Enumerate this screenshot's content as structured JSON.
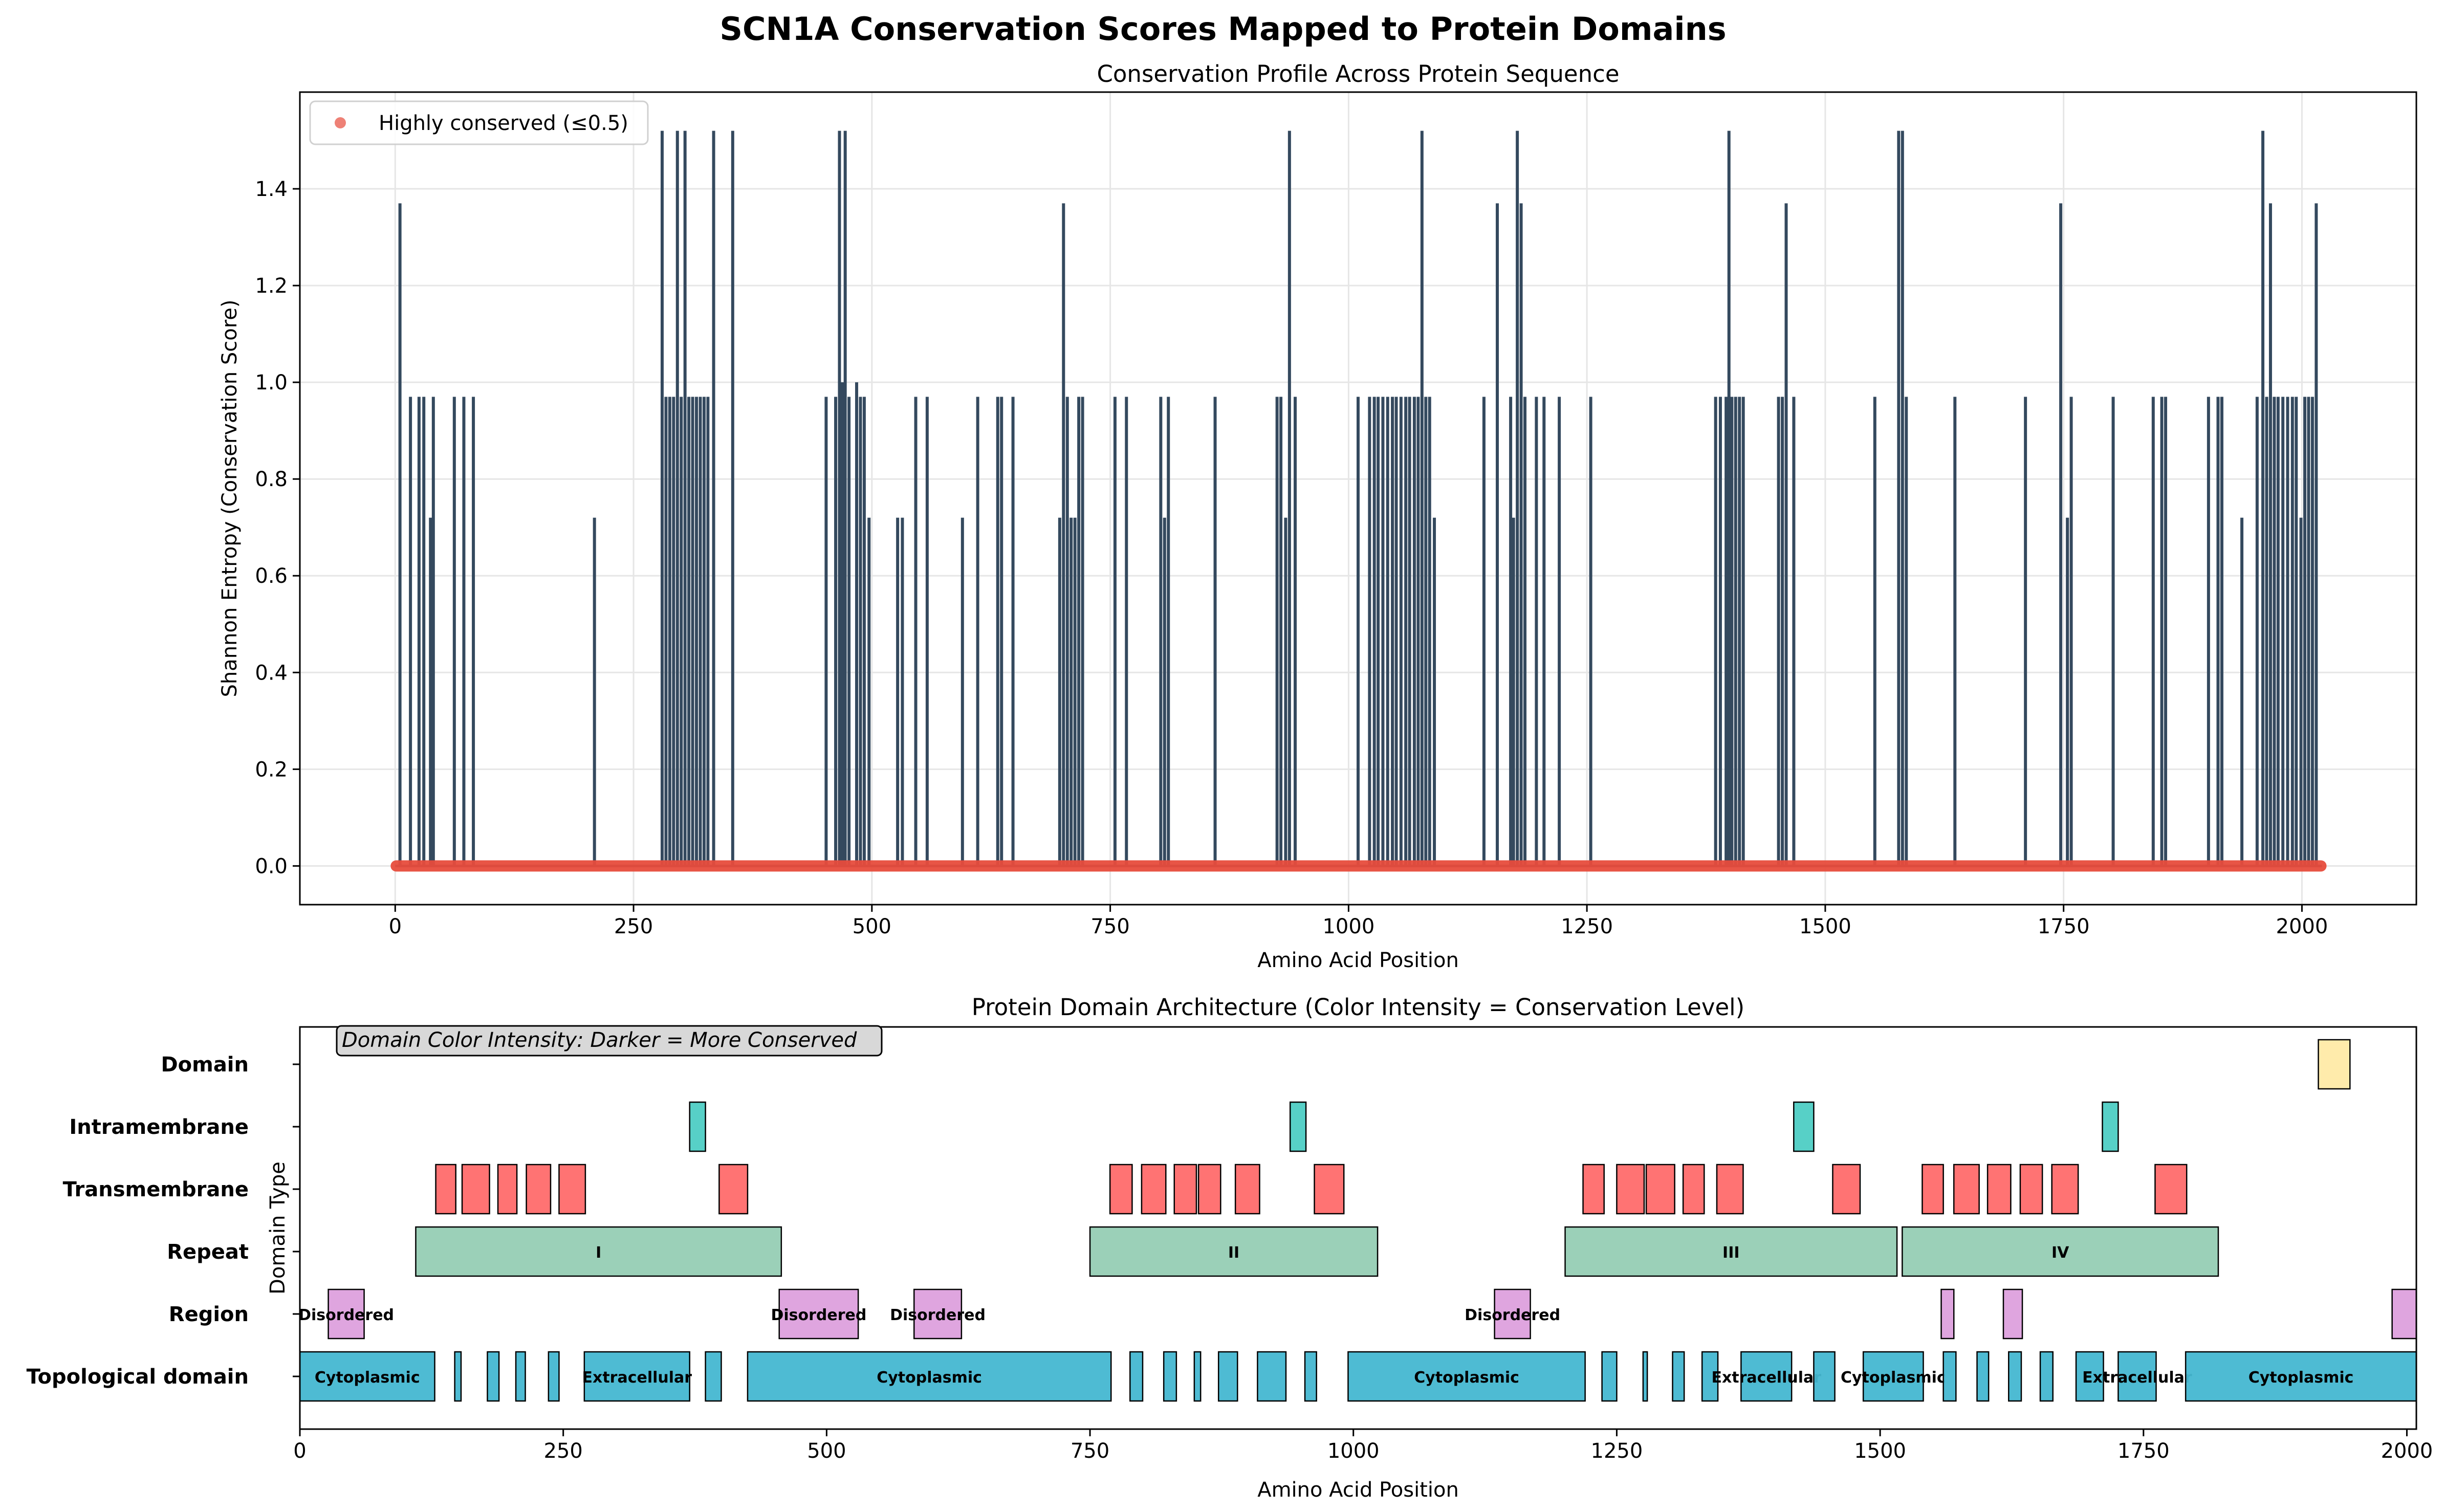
{
  "figure": {
    "suptitle": "SCN1A Conservation Scores Mapped to Protein Domains"
  },
  "chart_data": [
    {
      "type": "line",
      "title": "Conservation Profile Across Protein Sequence",
      "xlabel": "Amino Acid Position",
      "ylabel": "Shannon Entropy (Conservation Score)",
      "xlim": [
        -100,
        2120
      ],
      "ylim": [
        -0.08,
        1.6
      ],
      "xticks": [
        0,
        250,
        500,
        750,
        1000,
        1250,
        1500,
        1750,
        2000
      ],
      "yticks": [
        0.0,
        0.2,
        0.4,
        0.6,
        0.8,
        1.0,
        1.2,
        1.4
      ],
      "ytick_labels": [
        "0.0",
        "0.2",
        "0.4",
        "0.6",
        "0.8",
        "1.0",
        "1.2",
        "1.4"
      ],
      "grid": true,
      "legend_position": "top-left",
      "baseline_range": [
        0,
        2021
      ],
      "series": [
        {
          "name": "Shannon entropy",
          "color": "#34495e",
          "spikes": [
            [
              5,
              1.37
            ],
            [
              16,
              0.97
            ],
            [
              25,
              0.97
            ],
            [
              30,
              0.97
            ],
            [
              37,
              0.72
            ],
            [
              40,
              0.97
            ],
            [
              62,
              0.97
            ],
            [
              72,
              0.97
            ],
            [
              82,
              0.97
            ],
            [
              209,
              0.72
            ],
            [
              280,
              1.52
            ],
            [
              284,
              0.97
            ],
            [
              288,
              0.97
            ],
            [
              292,
              0.97
            ],
            [
              296,
              1.52
            ],
            [
              300,
              0.97
            ],
            [
              304,
              1.52
            ],
            [
              308,
              0.97
            ],
            [
              312,
              0.97
            ],
            [
              316,
              0.97
            ],
            [
              320,
              0.97
            ],
            [
              324,
              0.97
            ],
            [
              328,
              0.97
            ],
            [
              334,
              1.52
            ],
            [
              354,
              1.52
            ],
            [
              452,
              0.97
            ],
            [
              462,
              0.97
            ],
            [
              466,
              1.52
            ],
            [
              469,
              1.0
            ],
            [
              472,
              1.52
            ],
            [
              476,
              0.97
            ],
            [
              484,
              1.0
            ],
            [
              488,
              0.97
            ],
            [
              492,
              0.97
            ],
            [
              497,
              0.72
            ],
            [
              527,
              0.72
            ],
            [
              532,
              0.72
            ],
            [
              546,
              0.97
            ],
            [
              558,
              0.97
            ],
            [
              595,
              0.72
            ],
            [
              611,
              0.97
            ],
            [
              632,
              0.97
            ],
            [
              636,
              0.97
            ],
            [
              648,
              0.97
            ],
            [
              697,
              0.72
            ],
            [
              701,
              1.37
            ],
            [
              705,
              0.97
            ],
            [
              709,
              0.72
            ],
            [
              713,
              0.72
            ],
            [
              717,
              0.97
            ],
            [
              721,
              0.97
            ],
            [
              755,
              0.97
            ],
            [
              767,
              0.97
            ],
            [
              803,
              0.97
            ],
            [
              807,
              0.72
            ],
            [
              811,
              0.97
            ],
            [
              860,
              0.97
            ],
            [
              925,
              0.97
            ],
            [
              929,
              0.97
            ],
            [
              934,
              0.72
            ],
            [
              938,
              1.52
            ],
            [
              944,
              0.97
            ],
            [
              1010,
              0.97
            ],
            [
              1022,
              0.97
            ],
            [
              1027,
              0.97
            ],
            [
              1031,
              0.97
            ],
            [
              1036,
              0.97
            ],
            [
              1041,
              0.97
            ],
            [
              1046,
              0.97
            ],
            [
              1050,
              0.97
            ],
            [
              1055,
              0.97
            ],
            [
              1060,
              0.97
            ],
            [
              1064,
              0.97
            ],
            [
              1069,
              0.97
            ],
            [
              1073,
              0.97
            ],
            [
              1077,
              1.52
            ],
            [
              1081,
              0.97
            ],
            [
              1085,
              0.97
            ],
            [
              1090,
              0.72
            ],
            [
              1142,
              0.97
            ],
            [
              1156,
              1.37
            ],
            [
              1170,
              0.97
            ],
            [
              1173,
              0.72
            ],
            [
              1177,
              1.52
            ],
            [
              1181,
              1.37
            ],
            [
              1185,
              0.97
            ],
            [
              1197,
              0.97
            ],
            [
              1205,
              0.97
            ],
            [
              1221,
              0.97
            ],
            [
              1254,
              0.97
            ],
            [
              1385,
              0.97
            ],
            [
              1390,
              0.97
            ],
            [
              1396,
              0.97
            ],
            [
              1399,
              1.52
            ],
            [
              1402,
              0.97
            ],
            [
              1406,
              0.97
            ],
            [
              1410,
              0.97
            ],
            [
              1414,
              0.97
            ],
            [
              1451,
              0.97
            ],
            [
              1455,
              0.97
            ],
            [
              1459,
              1.37
            ],
            [
              1467,
              0.97
            ],
            [
              1552,
              0.97
            ],
            [
              1577,
              1.52
            ],
            [
              1581,
              1.52
            ],
            [
              1585,
              0.97
            ],
            [
              1636,
              0.97
            ],
            [
              1710,
              0.97
            ],
            [
              1747,
              1.37
            ],
            [
              1754,
              0.72
            ],
            [
              1758,
              0.97
            ],
            [
              1802,
              0.97
            ],
            [
              1844,
              0.97
            ],
            [
              1853,
              0.97
            ],
            [
              1857,
              0.97
            ],
            [
              1902,
              0.97
            ],
            [
              1912,
              0.97
            ],
            [
              1916,
              0.97
            ],
            [
              1937,
              0.72
            ],
            [
              1953,
              0.97
            ],
            [
              1959,
              1.52
            ],
            [
              1963,
              0.97
            ],
            [
              1967,
              1.37
            ],
            [
              1971,
              0.97
            ],
            [
              1975,
              0.97
            ],
            [
              1980,
              0.97
            ],
            [
              1985,
              0.97
            ],
            [
              1990,
              0.97
            ],
            [
              1994,
              0.97
            ],
            [
              1999,
              0.72
            ],
            [
              2003,
              0.97
            ],
            [
              2007,
              0.97
            ],
            [
              2011,
              0.97
            ],
            [
              2015,
              1.37
            ]
          ]
        },
        {
          "name": "Highly conserved (≤0.5)",
          "type": "scatter",
          "color": "#e74c3c",
          "y": 0.0
        }
      ]
    },
    {
      "type": "bar",
      "title": "Protein Domain Architecture (Color Intensity = Conservation Level)",
      "xlabel": "Amino Acid Position",
      "ylabel": "Domain Type",
      "xlim": [
        0,
        2009
      ],
      "xticks": [
        0,
        250,
        500,
        750,
        1000,
        1250,
        1500,
        1750,
        2000
      ],
      "grid": false,
      "annotation": "Domain Color Intensity: Darker = More Conserved",
      "categories": [
        "Domain",
        "Intramembrane",
        "Transmembrane",
        "Repeat",
        "Region",
        "Topological domain"
      ],
      "rows": [
        {
          "label": "Domain",
          "color": "#ffeaa7",
          "segments": [
            {
              "start": 1916,
              "end": 1946,
              "text": ""
            }
          ]
        },
        {
          "label": "Intramembrane",
          "color": "#4ecdc4",
          "segments": [
            {
              "start": 370,
              "end": 385,
              "text": ""
            },
            {
              "start": 940,
              "end": 955,
              "text": ""
            },
            {
              "start": 1418,
              "end": 1437,
              "text": ""
            },
            {
              "start": 1711,
              "end": 1726,
              "text": ""
            }
          ]
        },
        {
          "label": "Transmembrane",
          "color": "#ff6b6b",
          "segments": [
            {
              "start": 129,
              "end": 148,
              "text": ""
            },
            {
              "start": 154,
              "end": 180,
              "text": ""
            },
            {
              "start": 188,
              "end": 206,
              "text": ""
            },
            {
              "start": 215,
              "end": 238,
              "text": ""
            },
            {
              "start": 246,
              "end": 271,
              "text": ""
            },
            {
              "start": 398,
              "end": 425,
              "text": ""
            },
            {
              "start": 769,
              "end": 790,
              "text": ""
            },
            {
              "start": 799,
              "end": 822,
              "text": ""
            },
            {
              "start": 830,
              "end": 851,
              "text": ""
            },
            {
              "start": 853,
              "end": 874,
              "text": ""
            },
            {
              "start": 888,
              "end": 911,
              "text": ""
            },
            {
              "start": 963,
              "end": 991,
              "text": ""
            },
            {
              "start": 1218,
              "end": 1238,
              "text": ""
            },
            {
              "start": 1250,
              "end": 1276,
              "text": ""
            },
            {
              "start": 1278,
              "end": 1305,
              "text": ""
            },
            {
              "start": 1313,
              "end": 1333,
              "text": ""
            },
            {
              "start": 1345,
              "end": 1370,
              "text": ""
            },
            {
              "start": 1455,
              "end": 1481,
              "text": ""
            },
            {
              "start": 1540,
              "end": 1560,
              "text": ""
            },
            {
              "start": 1570,
              "end": 1594,
              "text": ""
            },
            {
              "start": 1602,
              "end": 1624,
              "text": ""
            },
            {
              "start": 1633,
              "end": 1654,
              "text": ""
            },
            {
              "start": 1663,
              "end": 1688,
              "text": ""
            },
            {
              "start": 1761,
              "end": 1791,
              "text": ""
            }
          ]
        },
        {
          "label": "Repeat",
          "color": "#96ceb4",
          "segments": [
            {
              "start": 110,
              "end": 457,
              "text": "I"
            },
            {
              "start": 750,
              "end": 1023,
              "text": "II"
            },
            {
              "start": 1201,
              "end": 1516,
              "text": "III"
            },
            {
              "start": 1521,
              "end": 1821,
              "text": "IV"
            }
          ]
        },
        {
          "label": "Region",
          "color": "#dda0dd",
          "segments": [
            {
              "start": 27,
              "end": 61,
              "text": "Disordered"
            },
            {
              "start": 455,
              "end": 530,
              "text": "Disordered"
            },
            {
              "start": 583,
              "end": 628,
              "text": "Disordered"
            },
            {
              "start": 1134,
              "end": 1168,
              "text": "Disordered"
            },
            {
              "start": 1558,
              "end": 1570,
              "text": ""
            },
            {
              "start": 1617,
              "end": 1635,
              "text": ""
            },
            {
              "start": 1986,
              "end": 2009,
              "text": ""
            }
          ]
        },
        {
          "label": "Topological domain",
          "color": "#45b7d1",
          "segments": [
            {
              "start": 0,
              "end": 128,
              "text": "Cytoplasmic"
            },
            {
              "start": 147,
              "end": 153,
              "text": ""
            },
            {
              "start": 178,
              "end": 189,
              "text": ""
            },
            {
              "start": 205,
              "end": 214,
              "text": ""
            },
            {
              "start": 236,
              "end": 246,
              "text": ""
            },
            {
              "start": 270,
              "end": 370,
              "text": "Extracellular"
            },
            {
              "start": 385,
              "end": 400,
              "text": ""
            },
            {
              "start": 425,
              "end": 770,
              "text": "Cytoplasmic"
            },
            {
              "start": 788,
              "end": 800,
              "text": ""
            },
            {
              "start": 820,
              "end": 832,
              "text": ""
            },
            {
              "start": 849,
              "end": 855,
              "text": ""
            },
            {
              "start": 872,
              "end": 890,
              "text": ""
            },
            {
              "start": 909,
              "end": 936,
              "text": ""
            },
            {
              "start": 954,
              "end": 965,
              "text": ""
            },
            {
              "start": 995,
              "end": 1220,
              "text": "Cytoplasmic"
            },
            {
              "start": 1236,
              "end": 1250,
              "text": ""
            },
            {
              "start": 1275,
              "end": 1279,
              "text": ""
            },
            {
              "start": 1303,
              "end": 1314,
              "text": ""
            },
            {
              "start": 1331,
              "end": 1346,
              "text": ""
            },
            {
              "start": 1368,
              "end": 1416,
              "text": "Extracellular"
            },
            {
              "start": 1437,
              "end": 1457,
              "text": ""
            },
            {
              "start": 1484,
              "end": 1541,
              "text": "Cytoplasmic"
            },
            {
              "start": 1560,
              "end": 1572,
              "text": ""
            },
            {
              "start": 1592,
              "end": 1603,
              "text": ""
            },
            {
              "start": 1622,
              "end": 1634,
              "text": ""
            },
            {
              "start": 1652,
              "end": 1664,
              "text": ""
            },
            {
              "start": 1686,
              "end": 1712,
              "text": ""
            },
            {
              "start": 1726,
              "end": 1762,
              "text": "Extracellular"
            },
            {
              "start": 1790,
              "end": 2009,
              "text": "Cytoplasmic"
            }
          ]
        }
      ]
    }
  ]
}
